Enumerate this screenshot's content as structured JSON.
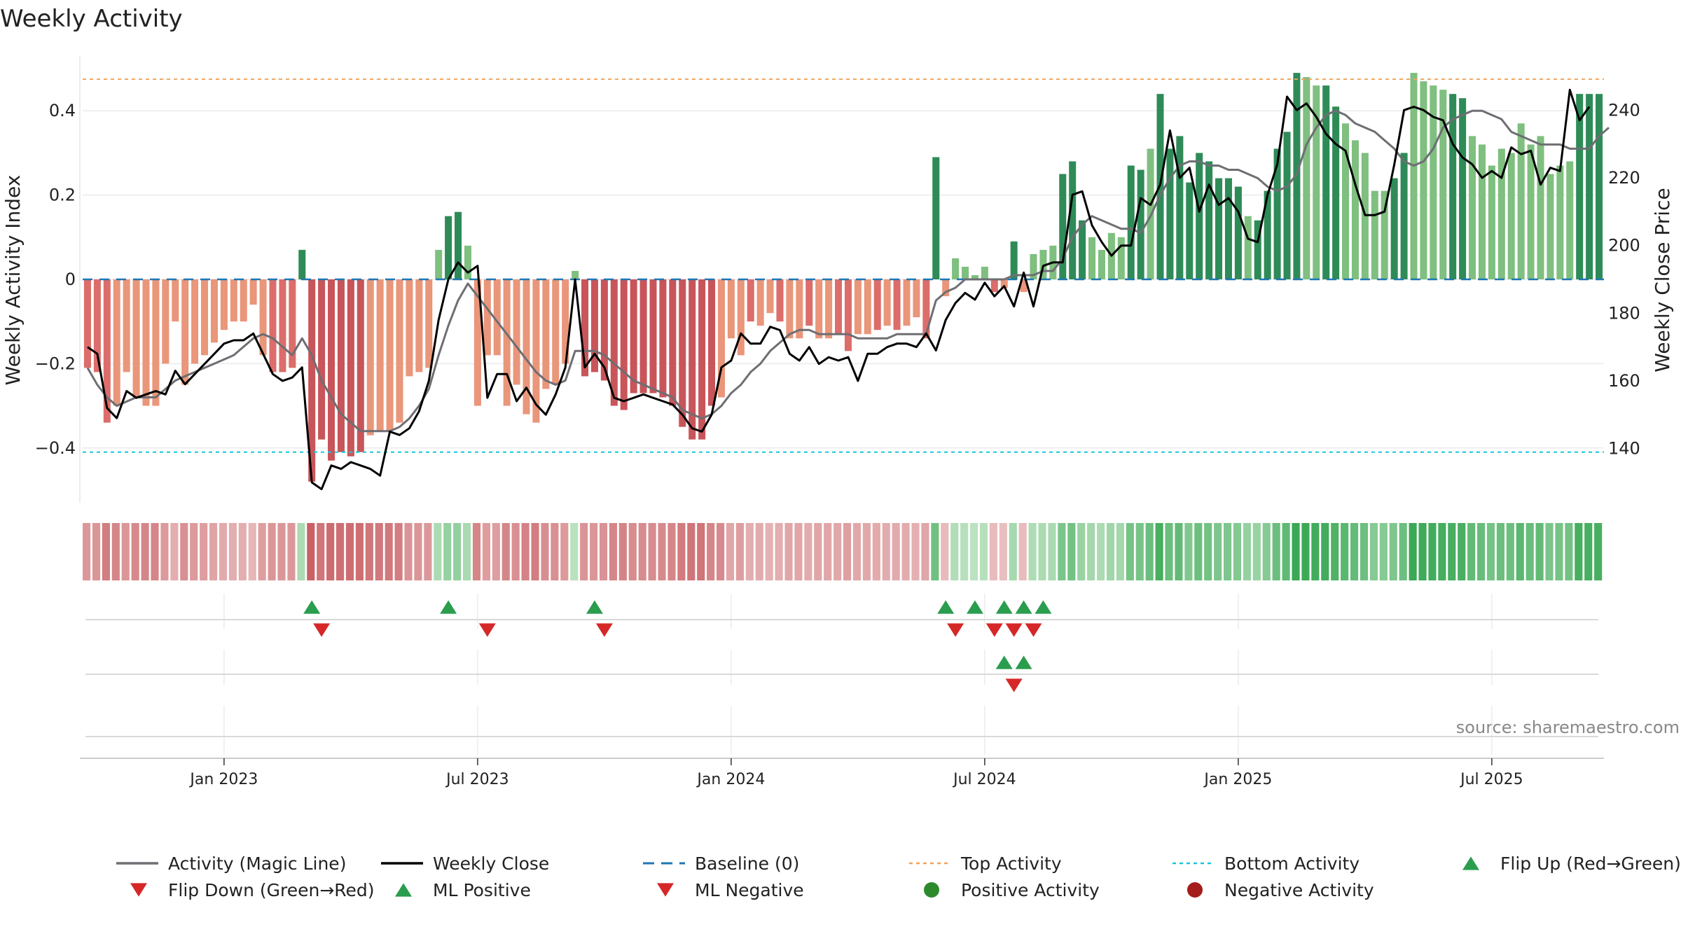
{
  "chart_data": {
    "type": "bar",
    "title": "Weekly Activity",
    "ylabel_left": "Weekly Activity Index",
    "ylabel_right": "Weekly Close Price",
    "source": "source: sharemaestro.com",
    "ylim_left": [
      -0.53,
      0.53
    ],
    "ylim_right": [
      124,
      256
    ],
    "yticks_left": [
      {
        "v": 0.4,
        "label": "0.4"
      },
      {
        "v": 0.2,
        "label": "0.2"
      },
      {
        "v": 0,
        "label": "0"
      },
      {
        "v": -0.2,
        "label": "−0.2"
      },
      {
        "v": -0.4,
        "label": "−0.4"
      }
    ],
    "yticks_right": [
      {
        "v": 240,
        "label": "240"
      },
      {
        "v": 220,
        "label": "220"
      },
      {
        "v": 200,
        "label": "200"
      },
      {
        "v": 180,
        "label": "180"
      },
      {
        "v": 160,
        "label": "160"
      },
      {
        "v": 140,
        "label": "140"
      }
    ],
    "xticks": [
      {
        "week": 14.5,
        "label": "Jan 2023"
      },
      {
        "week": 40.5,
        "label": "Jul 2023"
      },
      {
        "week": 66.5,
        "label": "Jan 2024"
      },
      {
        "week": 92.5,
        "label": "Jul 2024"
      },
      {
        "week": 118.5,
        "label": "Jan 2025"
      },
      {
        "week": 144.5,
        "label": "Jul 2025"
      }
    ],
    "top_activity": 0.475,
    "bottom_activity": -0.41,
    "activity": [
      -0.21,
      -0.22,
      -0.34,
      -0.3,
      -0.22,
      -0.28,
      -0.3,
      -0.3,
      -0.2,
      -0.1,
      -0.25,
      -0.2,
      -0.18,
      -0.15,
      -0.12,
      -0.1,
      -0.1,
      -0.06,
      -0.18,
      -0.22,
      -0.22,
      -0.21,
      0.07,
      -0.48,
      -0.38,
      -0.43,
      -0.41,
      -0.42,
      -0.41,
      -0.37,
      -0.36,
      -0.36,
      -0.34,
      -0.23,
      -0.22,
      -0.21,
      0.07,
      0.15,
      0.16,
      0.08,
      -0.3,
      -0.18,
      -0.18,
      -0.3,
      -0.25,
      -0.32,
      -0.34,
      -0.26,
      -0.25,
      -0.2,
      0.02,
      -0.23,
      -0.22,
      -0.24,
      -0.3,
      -0.31,
      -0.27,
      -0.27,
      -0.27,
      -0.28,
      -0.3,
      -0.35,
      -0.38,
      -0.38,
      -0.3,
      -0.28,
      -0.14,
      -0.18,
      -0.1,
      -0.11,
      -0.08,
      -0.1,
      -0.14,
      -0.14,
      -0.11,
      -0.14,
      -0.14,
      -0.13,
      -0.17,
      -0.13,
      -0.13,
      -0.12,
      -0.11,
      -0.12,
      -0.11,
      -0.09,
      -0.14,
      0.29,
      -0.04,
      0.05,
      0.03,
      0.01,
      0.03,
      -0.03,
      -0.02,
      0.09,
      -0.03,
      0.06,
      0.07,
      0.08,
      0.25,
      0.28,
      0.14,
      0.1,
      0.07,
      0.11,
      0.1,
      0.27,
      0.26,
      0.31,
      0.44,
      0.31,
      0.34,
      0.23,
      0.3,
      0.28,
      0.24,
      0.24,
      0.22,
      0.15,
      0.14,
      0.21,
      0.31,
      0.35,
      0.49,
      0.48,
      0.46,
      0.46,
      0.41,
      0.37,
      0.33,
      0.3,
      0.21,
      0.21,
      0.24,
      0.3,
      0.49,
      0.47,
      0.46,
      0.45,
      0.44,
      0.43,
      0.34,
      0.32,
      0.27,
      0.31,
      0.3,
      0.37,
      0.32,
      0.34,
      0.25,
      0.27,
      0.28,
      0.44,
      0.44,
      0.44
    ],
    "activity_strength": [
      "m",
      "m",
      "m",
      "l",
      "l",
      "l",
      "l",
      "l",
      "l",
      "l",
      "l",
      "l",
      "l",
      "l",
      "l",
      "l",
      "l",
      "l",
      "l",
      "m",
      "m",
      "m",
      "d",
      "d",
      "d",
      "d",
      "d",
      "d",
      "d",
      "l",
      "l",
      "l",
      "l",
      "l",
      "l",
      "l",
      "m",
      "d",
      "d",
      "l",
      "l",
      "l",
      "l",
      "l",
      "l",
      "l",
      "l",
      "l",
      "l",
      "l",
      "m",
      "d",
      "d",
      "d",
      "d",
      "d",
      "d",
      "d",
      "d",
      "d",
      "d",
      "d",
      "d",
      "d",
      "d",
      "l",
      "l",
      "l",
      "m",
      "l",
      "l",
      "m",
      "l",
      "l",
      "m",
      "l",
      "l",
      "m",
      "m",
      "l",
      "l",
      "m",
      "l",
      "m",
      "l",
      "l",
      "m",
      "d",
      "l",
      "m",
      "l",
      "m",
      "l",
      "m",
      "l",
      "d",
      "l",
      "l",
      "l",
      "l",
      "d",
      "d",
      "d",
      "l",
      "m",
      "l",
      "l",
      "d",
      "d",
      "l",
      "d",
      "d",
      "d",
      "d",
      "d",
      "d",
      "d",
      "d",
      "d",
      "l",
      "d",
      "d",
      "d",
      "d",
      "d",
      "l",
      "l",
      "d",
      "d",
      "l",
      "l",
      "l",
      "l",
      "l",
      "d",
      "d",
      "l",
      "l",
      "l",
      "l",
      "d",
      "d",
      "l",
      "l",
      "l",
      "l",
      "l",
      "l",
      "l",
      "l",
      "m",
      "l",
      "l",
      "d",
      "d",
      "d"
    ],
    "magic_line": [
      -0.21,
      -0.25,
      -0.28,
      -0.3,
      -0.29,
      -0.28,
      -0.28,
      -0.28,
      -0.26,
      -0.24,
      -0.23,
      -0.22,
      -0.21,
      -0.2,
      -0.19,
      -0.18,
      -0.16,
      -0.14,
      -0.13,
      -0.14,
      -0.16,
      -0.18,
      -0.14,
      -0.18,
      -0.24,
      -0.28,
      -0.32,
      -0.34,
      -0.36,
      -0.36,
      -0.36,
      -0.36,
      -0.35,
      -0.33,
      -0.3,
      -0.26,
      -0.18,
      -0.11,
      -0.05,
      -0.01,
      -0.04,
      -0.07,
      -0.1,
      -0.13,
      -0.16,
      -0.19,
      -0.22,
      -0.24,
      -0.25,
      -0.24,
      -0.17,
      -0.17,
      -0.17,
      -0.18,
      -0.2,
      -0.22,
      -0.24,
      -0.25,
      -0.26,
      -0.27,
      -0.28,
      -0.31,
      -0.32,
      -0.33,
      -0.32,
      -0.3,
      -0.27,
      -0.25,
      -0.22,
      -0.2,
      -0.17,
      -0.15,
      -0.13,
      -0.12,
      -0.12,
      -0.13,
      -0.13,
      -0.13,
      -0.13,
      -0.14,
      -0.14,
      -0.14,
      -0.14,
      -0.13,
      -0.13,
      -0.13,
      -0.13,
      -0.05,
      -0.03,
      -0.02,
      0,
      0,
      0,
      0,
      0,
      0.01,
      0.01,
      0.01,
      0.02,
      0.02,
      0.05,
      0.1,
      0.13,
      0.15,
      0.14,
      0.13,
      0.12,
      0.12,
      0.11,
      0.15,
      0.2,
      0.24,
      0.27,
      0.28,
      0.28,
      0.27,
      0.27,
      0.26,
      0.26,
      0.25,
      0.24,
      0.22,
      0.21,
      0.22,
      0.25,
      0.32,
      0.36,
      0.39,
      0.4,
      0.39,
      0.37,
      0.36,
      0.35,
      0.33,
      0.31,
      0.28,
      0.27,
      0.28,
      0.31,
      0.36,
      0.38,
      0.39,
      0.4,
      0.4,
      0.39,
      0.38,
      0.35,
      0.34,
      0.33,
      0.32,
      0.32,
      0.32,
      0.31,
      0.31,
      0.31,
      0.34,
      0.36
    ],
    "weekly_close": [
      170,
      168,
      152,
      149,
      157,
      155,
      156,
      157,
      156,
      163,
      159,
      162,
      165,
      168,
      171,
      172,
      172,
      174,
      168,
      162,
      160,
      161,
      164,
      130,
      128,
      135,
      134,
      136,
      135,
      134,
      132,
      145,
      144,
      146,
      151,
      160,
      178,
      190,
      195,
      192,
      194,
      155,
      162,
      162,
      154,
      158,
      153,
      150,
      156,
      164,
      190,
      164,
      168,
      164,
      155,
      154,
      155,
      156,
      155,
      154,
      153,
      150,
      146,
      145,
      150,
      164,
      166,
      174,
      171,
      171,
      176,
      175,
      168,
      166,
      170,
      165,
      167,
      166,
      167,
      160,
      168,
      168,
      170,
      171,
      171,
      170,
      174,
      169,
      178,
      183,
      186,
      184,
      189,
      185,
      188,
      182,
      192,
      182,
      194,
      195,
      195,
      215,
      216,
      206,
      201,
      197,
      200,
      200,
      214,
      212,
      218,
      234,
      220,
      223,
      210,
      218,
      212,
      214,
      210,
      202,
      201,
      215,
      224,
      244,
      240,
      242,
      238,
      233,
      230,
      228,
      218,
      209,
      209,
      210,
      224,
      240,
      241,
      240,
      238,
      237,
      230,
      226,
      224,
      220,
      222,
      220,
      229,
      227,
      228,
      218,
      223,
      222,
      246,
      237,
      241
    ],
    "flip_up": [
      23,
      37,
      52,
      88,
      91,
      94,
      96,
      98
    ],
    "flip_down": [
      24,
      41,
      53,
      89,
      93,
      95,
      97
    ],
    "ml_positive": [
      94,
      96
    ],
    "ml_negative": [
      95
    ],
    "legend": [
      {
        "key": "magic",
        "label": "Activity (Magic Line)",
        "color": "#6e6e73"
      },
      {
        "key": "close",
        "label": "Weekly Close",
        "color": "#000000"
      },
      {
        "key": "baseline",
        "label": "Baseline (0)",
        "color": "#1f77b4"
      },
      {
        "key": "top",
        "label": "Top Activity",
        "color": "#f0a35e"
      },
      {
        "key": "bottom",
        "label": "Bottom Activity",
        "color": "#17c8d9"
      },
      {
        "key": "flipup",
        "label": "Flip Up (Red→Green)",
        "color": "#2a9d4f"
      },
      {
        "key": "flipdown",
        "label": "Flip Down (Green→Red)",
        "color": "#d62728"
      },
      {
        "key": "mlpos",
        "label": "ML Positive",
        "color": "#2a9d4f"
      },
      {
        "key": "mlneg",
        "label": "ML Negative",
        "color": "#d62728"
      },
      {
        "key": "posact",
        "label": "Positive Activity",
        "color": "#2c8a2c"
      },
      {
        "key": "negact",
        "label": "Negative Activity",
        "color": "#a51c1c"
      }
    ],
    "colors": {
      "pos_dark": "#2e8b57",
      "pos_light": "#7fbf7f",
      "neg_dark": "#c8555a",
      "neg_mid": "#dc6d6a",
      "neg_light": "#e9967a",
      "grid": "#ebebeb",
      "axis": "#cccccc",
      "text": "#222222"
    }
  }
}
